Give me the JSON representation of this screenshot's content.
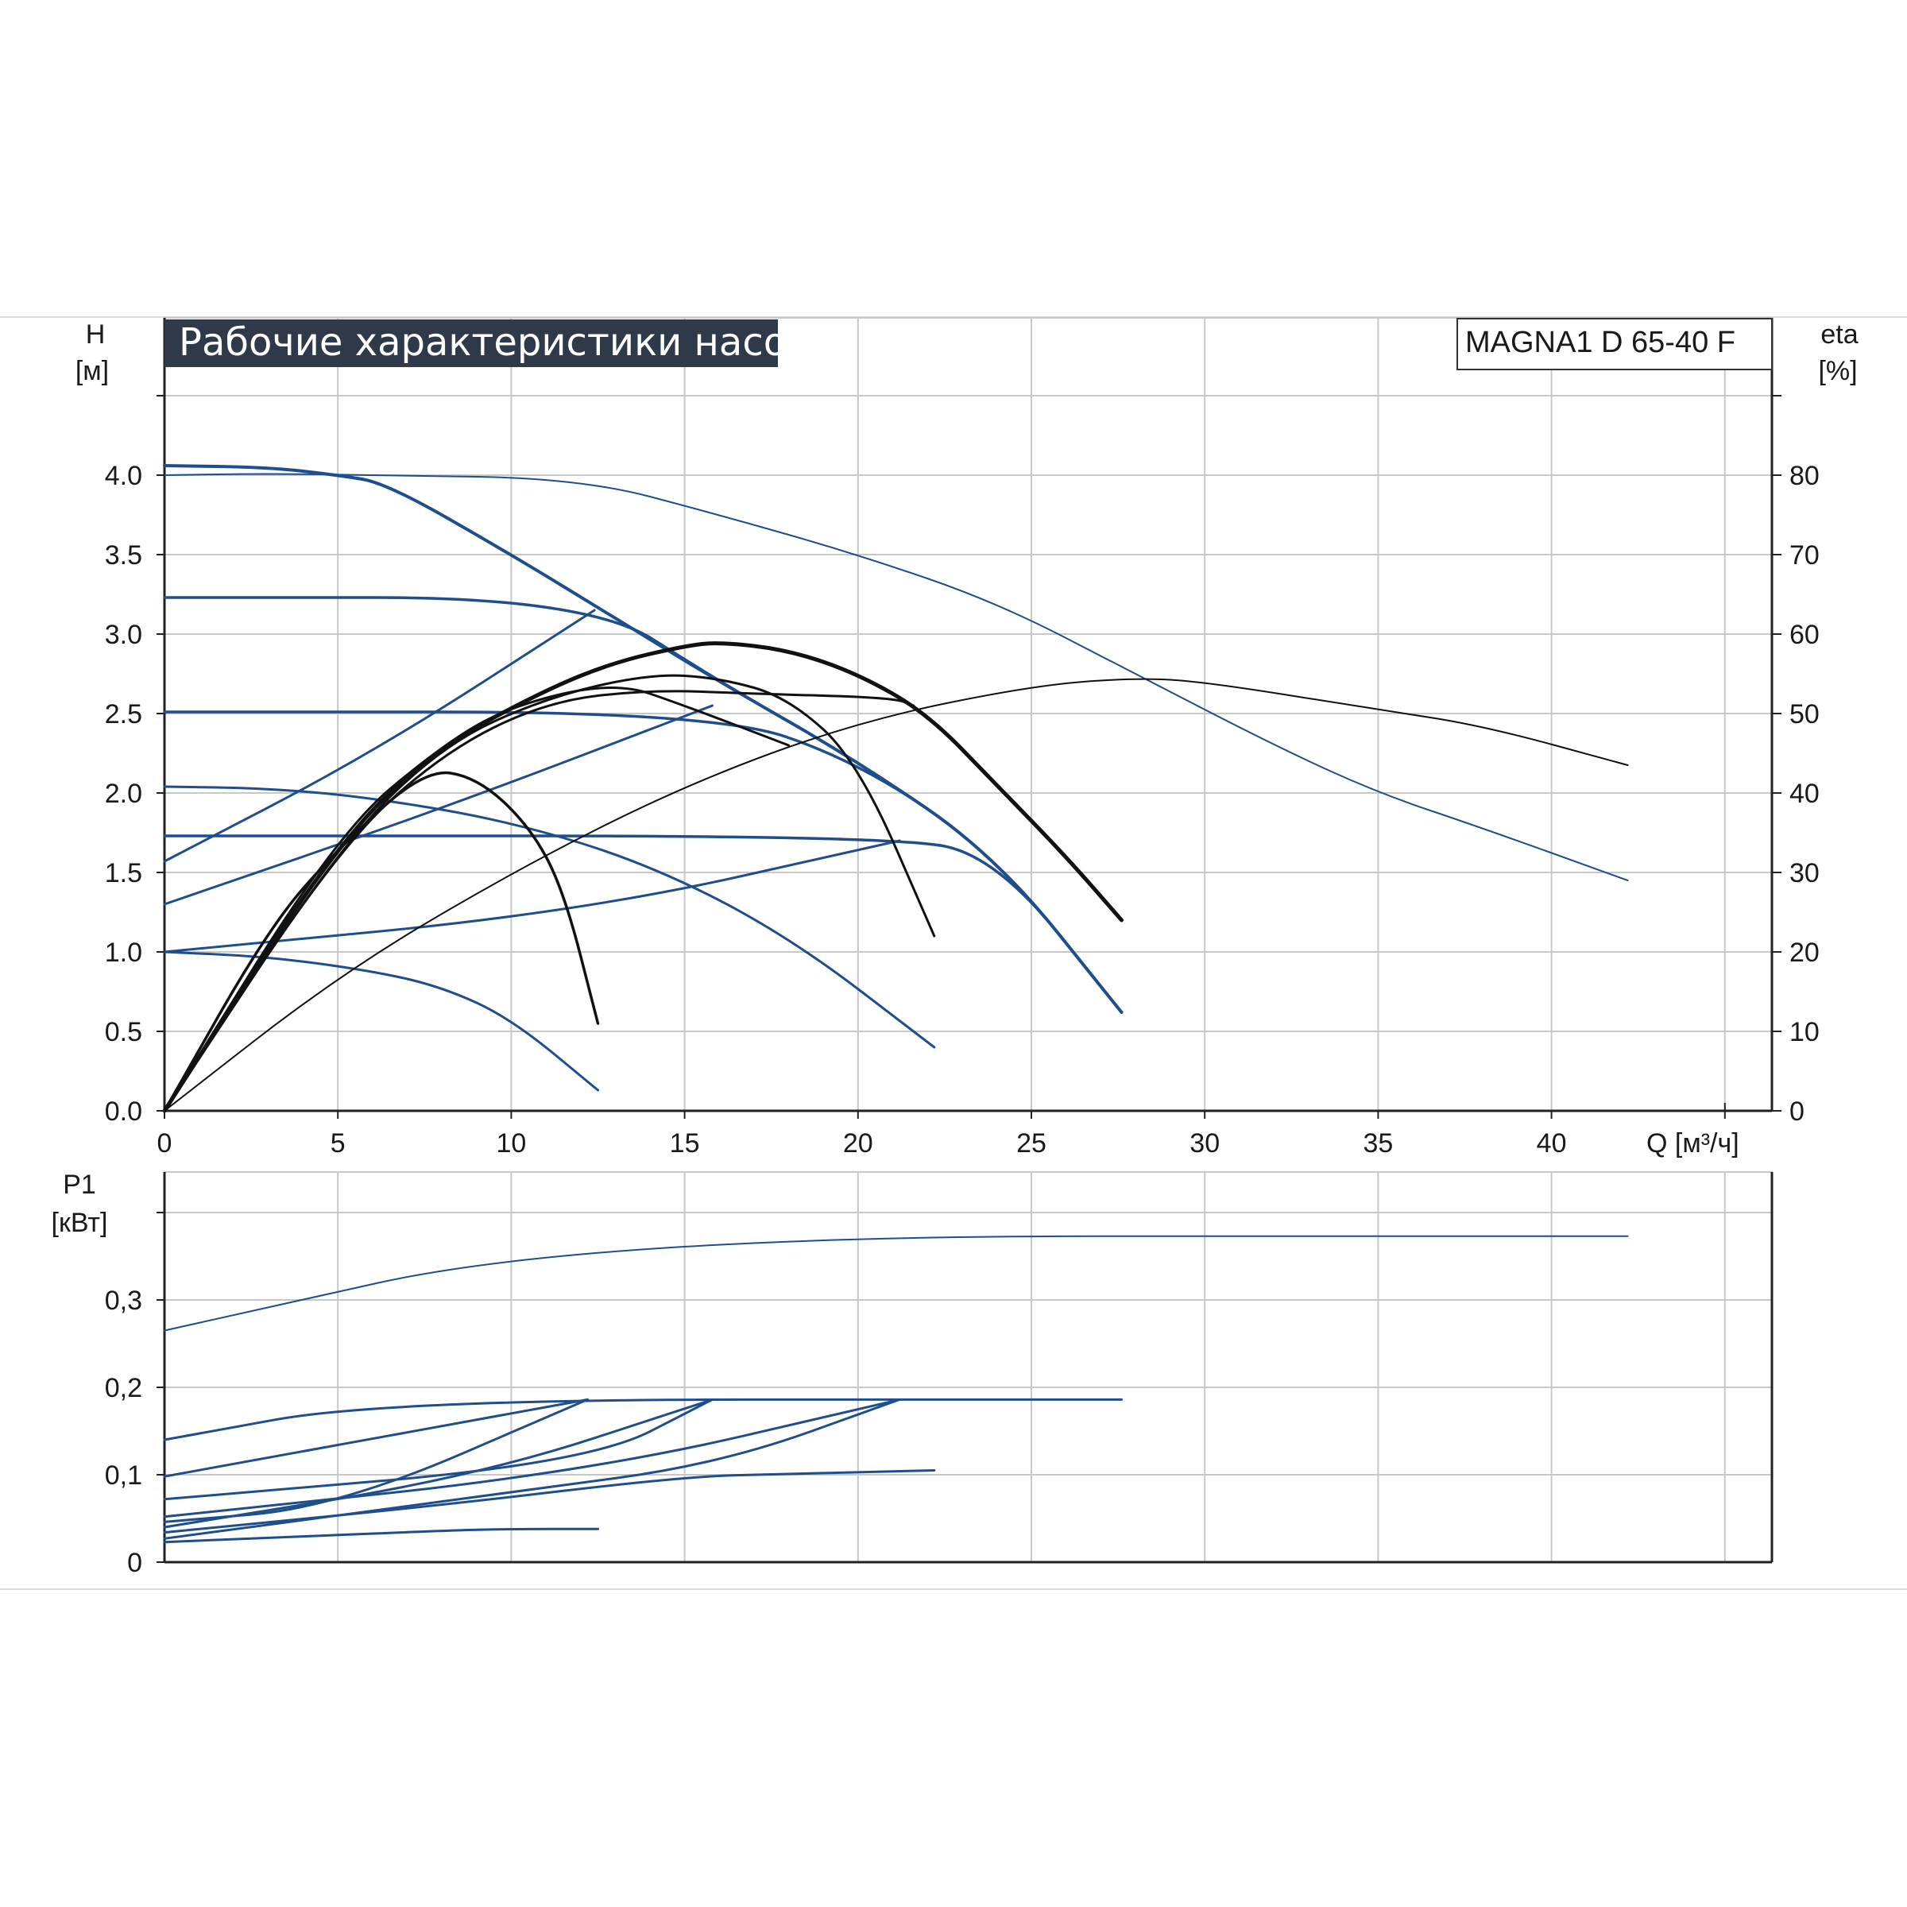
{
  "title": "Рабочие характеристики насоса",
  "model": "MAGNA1 D 65-40 F",
  "colors": {
    "blue": "#1f4e8c",
    "black": "#111111",
    "title_bg": "#2e3a4a",
    "grid": "#c8c8c8"
  },
  "chart_data": [
    {
      "type": "line",
      "panel": "head",
      "ylabel_top": "H",
      "ylabel_unit": "[м]",
      "y2label_top": "eta",
      "y2label_unit": "[%]",
      "xlabel": "Q [м³/ч]",
      "xlim": [
        0,
        46.5
      ],
      "ylim": [
        0,
        5
      ],
      "y2lim": [
        0,
        100
      ],
      "x_ticks": [
        "0",
        "5",
        "10",
        "15",
        "20",
        "25",
        "30",
        "35",
        "40"
      ],
      "y_ticks": [
        "0.0",
        "0.5",
        "1.0",
        "1.5",
        "2.0",
        "2.5",
        "3.0",
        "3.5",
        "4.0"
      ],
      "y2_ticks": [
        "0",
        "10",
        "20",
        "30",
        "40",
        "50",
        "60",
        "70",
        "80"
      ],
      "grid": true,
      "series": [
        {
          "kind": "H",
          "color": "blue",
          "width": 2,
          "points": [
            [
              0,
              4.0
            ],
            [
              3,
              4.01
            ],
            [
              6,
              4.0
            ],
            [
              12,
              3.98
            ],
            [
              16,
              3.75
            ],
            [
              20,
              3.5
            ],
            [
              24,
              3.2
            ],
            [
              28,
              2.75
            ],
            [
              32,
              2.3
            ],
            [
              35,
              2.0
            ],
            [
              38,
              1.78
            ],
            [
              42.2,
              1.45
            ]
          ]
        },
        {
          "kind": "H",
          "color": "blue",
          "width": 4,
          "points": [
            [
              0,
              4.06
            ],
            [
              3,
              4.05
            ],
            [
              5,
              4.0
            ],
            [
              6.4,
              3.95
            ],
            [
              10,
              3.5
            ],
            [
              13,
              3.1
            ],
            [
              16,
              2.7
            ],
            [
              20,
              2.2
            ],
            [
              24,
              1.6
            ],
            [
              27.6,
              0.62
            ]
          ]
        },
        {
          "kind": "H",
          "color": "blue",
          "width": 3.5,
          "points": [
            [
              0,
              3.23
            ],
            [
              12.2,
              3.23
            ],
            [
              16,
              2.7
            ],
            [
              20,
              2.2
            ],
            [
              24,
              1.6
            ],
            [
              27.6,
              0.62
            ]
          ]
        },
        {
          "kind": "H",
          "color": "blue",
          "width": 3.5,
          "points": [
            [
              0,
              2.51
            ],
            [
              15.8,
              2.51
            ],
            [
              20,
              2.2
            ],
            [
              24,
              1.6
            ],
            [
              27.6,
              0.62
            ]
          ]
        },
        {
          "kind": "H",
          "color": "blue",
          "width": 3.5,
          "points": [
            [
              0,
              1.73
            ],
            [
              21,
              1.73
            ],
            [
              24,
              1.6
            ],
            [
              27.6,
              0.62
            ]
          ]
        },
        {
          "kind": "H",
          "color": "blue",
          "width": 3,
          "points": [
            [
              0,
              2.04
            ],
            [
              3,
              2.03
            ],
            [
              6,
              1.97
            ],
            [
              10,
              1.82
            ],
            [
              14,
              1.55
            ],
            [
              18,
              1.1
            ],
            [
              22.2,
              0.4
            ]
          ]
        },
        {
          "kind": "H",
          "color": "blue",
          "width": 3,
          "points": [
            [
              0,
              1.0
            ],
            [
              3,
              0.97
            ],
            [
              6,
              0.88
            ],
            [
              8,
              0.78
            ],
            [
              10,
              0.58
            ],
            [
              12.5,
              0.13
            ]
          ]
        },
        {
          "kind": "H",
          "color": "blue",
          "width": 3,
          "points": [
            [
              0,
              1.0
            ],
            [
              12,
              1.25
            ],
            [
              21.2,
              1.7
            ]
          ]
        },
        {
          "kind": "H",
          "color": "blue",
          "width": 3,
          "points": [
            [
              0,
              1.3
            ],
            [
              8,
              1.9
            ],
            [
              15.8,
              2.55
            ]
          ]
        },
        {
          "kind": "H",
          "color": "blue",
          "width": 3,
          "points": [
            [
              0,
              1.57
            ],
            [
              6,
              2.25
            ],
            [
              12.4,
              3.15
            ]
          ]
        },
        {
          "kind": "eta",
          "color": "black",
          "width": 2,
          "points": [
            [
              0,
              0
            ],
            [
              5,
              17
            ],
            [
              10,
              30
            ],
            [
              15,
              41
            ],
            [
              20,
              49
            ],
            [
              25,
              53.5
            ],
            [
              28,
              54.5
            ],
            [
              30,
              54
            ],
            [
              35,
              50.5
            ],
            [
              38,
              48.5
            ],
            [
              42.2,
              43.5
            ]
          ]
        },
        {
          "kind": "eta",
          "color": "black",
          "width": 5,
          "points": [
            [
              0,
              0
            ],
            [
              5,
              34
            ],
            [
              8,
              46
            ],
            [
              11,
              53
            ],
            [
              13,
              56.5
            ],
            [
              15,
              58.5
            ],
            [
              16,
              59
            ],
            [
              18,
              58
            ],
            [
              20,
              55
            ],
            [
              22,
              50
            ],
            [
              24,
              41
            ],
            [
              26,
              32
            ],
            [
              27.6,
              24
            ]
          ]
        },
        {
          "kind": "eta",
          "color": "black",
          "width": 3,
          "points": [
            [
              0,
              0
            ],
            [
              5,
              33
            ],
            [
              8,
              45
            ],
            [
              11,
              51.5
            ],
            [
              14,
              53
            ],
            [
              17,
              52.5
            ],
            [
              21,
              52
            ],
            [
              21.6,
              51
            ]
          ]
        },
        {
          "kind": "eta",
          "color": "black",
          "width": 3,
          "points": [
            [
              0,
              0
            ],
            [
              5,
              33
            ],
            [
              8,
              46
            ],
            [
              11,
              52
            ],
            [
              14,
              55
            ],
            [
              16,
              54.5
            ],
            [
              18,
              52
            ],
            [
              20,
              44
            ],
            [
              22.2,
              22
            ]
          ]
        },
        {
          "kind": "eta",
          "color": "black",
          "width": 3,
          "points": [
            [
              0,
              0
            ],
            [
              5,
              35
            ],
            [
              8,
              46
            ],
            [
              10,
              51
            ],
            [
              13,
              54
            ],
            [
              15,
              51
            ],
            [
              18,
              46
            ]
          ]
        },
        {
          "kind": "eta",
          "color": "black",
          "width": 3.5,
          "points": [
            [
              0,
              0
            ],
            [
              3,
              23
            ],
            [
              5,
              33
            ],
            [
              7.5,
              43
            ],
            [
              9,
              42
            ],
            [
              10.5,
              36
            ],
            [
              11.5,
              28
            ],
            [
              12.5,
              11
            ]
          ]
        }
      ]
    },
    {
      "type": "line",
      "panel": "power",
      "ylabel_top": "P1",
      "ylabel_unit": "[кВт]",
      "xlim": [
        0,
        46.5
      ],
      "ylim": [
        0,
        0.4
      ],
      "y_ticks": [
        "0",
        "0,1",
        "0,2",
        "0,3"
      ],
      "grid": true,
      "series": [
        {
          "color": "blue",
          "width": 2,
          "points": [
            [
              0,
              0.265
            ],
            [
              12.2,
              0.373
            ],
            [
              42.2,
              0.373
            ]
          ]
        },
        {
          "color": "blue",
          "width": 3,
          "points": [
            [
              0,
              0.14
            ],
            [
              6.4,
              0.186
            ],
            [
              27.6,
              0.186
            ]
          ]
        },
        {
          "color": "blue",
          "width": 3,
          "points": [
            [
              0,
              0.098
            ],
            [
              12.2,
              0.186
            ]
          ]
        },
        {
          "color": "blue",
          "width": 3,
          "points": [
            [
              0,
              0.072
            ],
            [
              12.2,
              0.113
            ],
            [
              15.8,
              0.186
            ]
          ]
        },
        {
          "color": "blue",
          "width": 3,
          "points": [
            [
              0,
              0.052
            ],
            [
              12.2,
              0.103
            ],
            [
              21.2,
              0.186
            ]
          ]
        },
        {
          "color": "blue",
          "width": 3,
          "points": [
            [
              0,
              0.046
            ],
            [
              5,
              0.063
            ],
            [
              12.2,
              0.186
            ]
          ]
        },
        {
          "color": "blue",
          "width": 3,
          "points": [
            [
              0,
              0.04
            ],
            [
              9,
              0.098
            ],
            [
              15.8,
              0.186
            ]
          ]
        },
        {
          "color": "blue",
          "width": 3,
          "points": [
            [
              0,
              0.034
            ],
            [
              8,
              0.065
            ],
            [
              15,
              0.098
            ],
            [
              18,
              0.101
            ],
            [
              22.2,
              0.105
            ]
          ]
        },
        {
          "color": "blue",
          "width": 3,
          "points": [
            [
              0,
              0.027
            ],
            [
              10,
              0.08
            ],
            [
              16,
              0.112
            ],
            [
              21.2,
              0.186
            ]
          ]
        },
        {
          "color": "blue",
          "width": 3,
          "points": [
            [
              0,
              0.023
            ],
            [
              8,
              0.036
            ],
            [
              10,
              0.038
            ],
            [
              12.5,
              0.038
            ]
          ]
        }
      ]
    }
  ]
}
